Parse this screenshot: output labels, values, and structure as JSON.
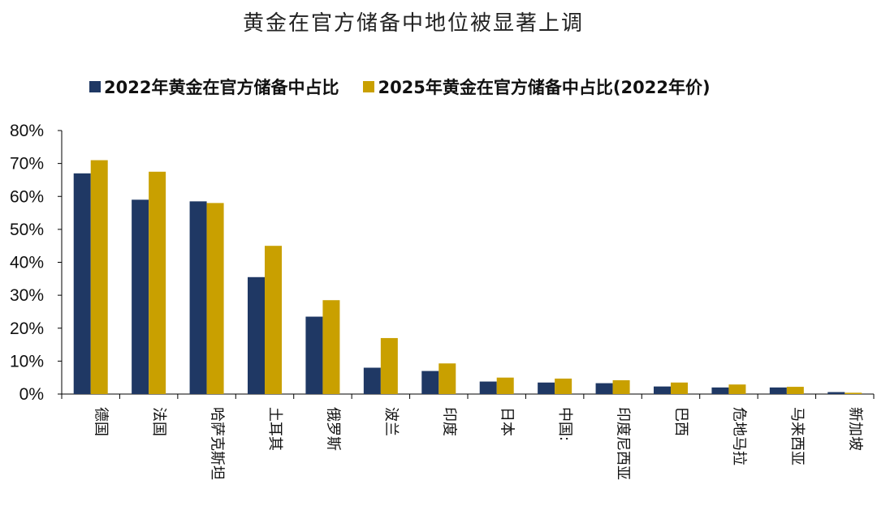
{
  "chart_data": {
    "type": "bar",
    "title": "黄金在官方储备中地位被显著上调",
    "categories": [
      "德国",
      "法国",
      "哈萨克斯坦",
      "土耳其",
      "俄罗斯",
      "波兰",
      "印度",
      "日本",
      "中国:",
      "印度尼西亚",
      "巴西",
      "危地马拉",
      "马来西亚",
      "新加坡"
    ],
    "series": [
      {
        "name": "2022年黄金在官方储备中占比",
        "color": "#1f3864",
        "values": [
          67,
          59,
          58.5,
          35.5,
          23.5,
          8,
          7,
          3.8,
          3.5,
          3.3,
          2.3,
          2.0,
          2.0,
          0.6
        ]
      },
      {
        "name": "2025年黄金在官方储备中占比(2022年价)",
        "color": "#c9a000",
        "values": [
          71,
          67.5,
          58,
          45,
          28.5,
          17,
          9.3,
          5,
          4.7,
          4.2,
          3.5,
          2.9,
          2.2,
          0.4
        ]
      }
    ],
    "ylim": [
      0,
      80
    ],
    "yticks": [
      "0%",
      "10%",
      "20%",
      "30%",
      "40%",
      "50%",
      "60%",
      "70%",
      "80%"
    ],
    "legend_position": "top",
    "grid": false
  }
}
